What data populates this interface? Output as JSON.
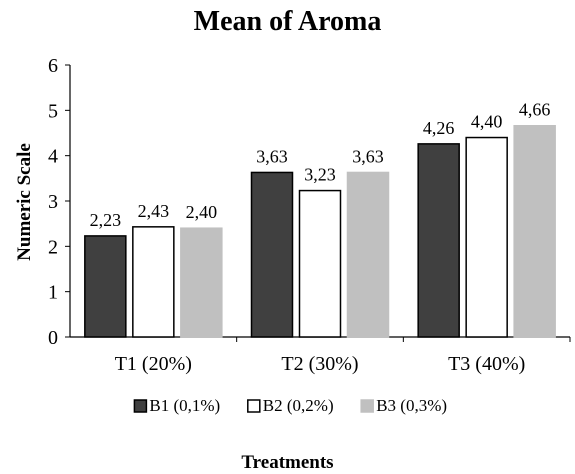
{
  "chart_data": {
    "type": "bar",
    "title": "Mean of Aroma",
    "xlabel": "Treatments",
    "ylabel": "Numeric Scale",
    "categories": [
      "T1 (20%)",
      "T2 (30%)",
      "T3 (40%)"
    ],
    "series": [
      {
        "name": "B1 (0,1%)",
        "values": [
          2.23,
          3.63,
          4.26
        ],
        "labels": [
          "2,23",
          "3,63",
          "4,26"
        ],
        "fill": "#404040",
        "stroke": "#000000"
      },
      {
        "name": "B2 (0,2%)",
        "values": [
          2.43,
          3.23,
          4.4
        ],
        "labels": [
          "2,43",
          "3,23",
          "4,40"
        ],
        "fill": "#ffffff",
        "stroke": "#000000"
      },
      {
        "name": "B3 (0,3%)",
        "values": [
          2.4,
          3.63,
          4.66
        ],
        "labels": [
          "2,40",
          "3,63",
          "4,66"
        ],
        "fill": "#c0c0c0",
        "stroke": "#c0c0c0"
      }
    ],
    "ylim": [
      0,
      6
    ],
    "yticks": [
      "0",
      "1",
      "2",
      "3",
      "4",
      "5",
      "6"
    ],
    "grid": false,
    "legend_position": "bottom"
  }
}
